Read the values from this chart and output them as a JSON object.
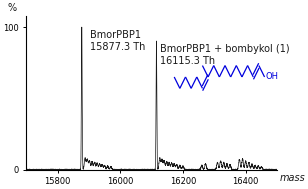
{
  "xlim": [
    15700,
    16500
  ],
  "ylim": [
    0,
    108
  ],
  "xlabel": "mass",
  "ylabel": "%",
  "peak1_x": 15877.3,
  "peak1_label": "BmorPBP1\n15877.3 Th",
  "peak2_x": 16115.3,
  "peak2_label": "BmorPBP1 + bombykol (1)\n16115.3 Th",
  "xticks": [
    15800,
    16000,
    16200,
    16400
  ],
  "yticks": [
    0,
    100
  ],
  "bg_color": "#ffffff",
  "line_color": "#1a1a1a",
  "annotation_color": "#1a1a1a",
  "molecule_color": "#0000dd",
  "tick_label_size": 6,
  "axis_label_size": 7,
  "annotation_size": 7,
  "peak1_amp": 100,
  "peak2_amp": 90
}
